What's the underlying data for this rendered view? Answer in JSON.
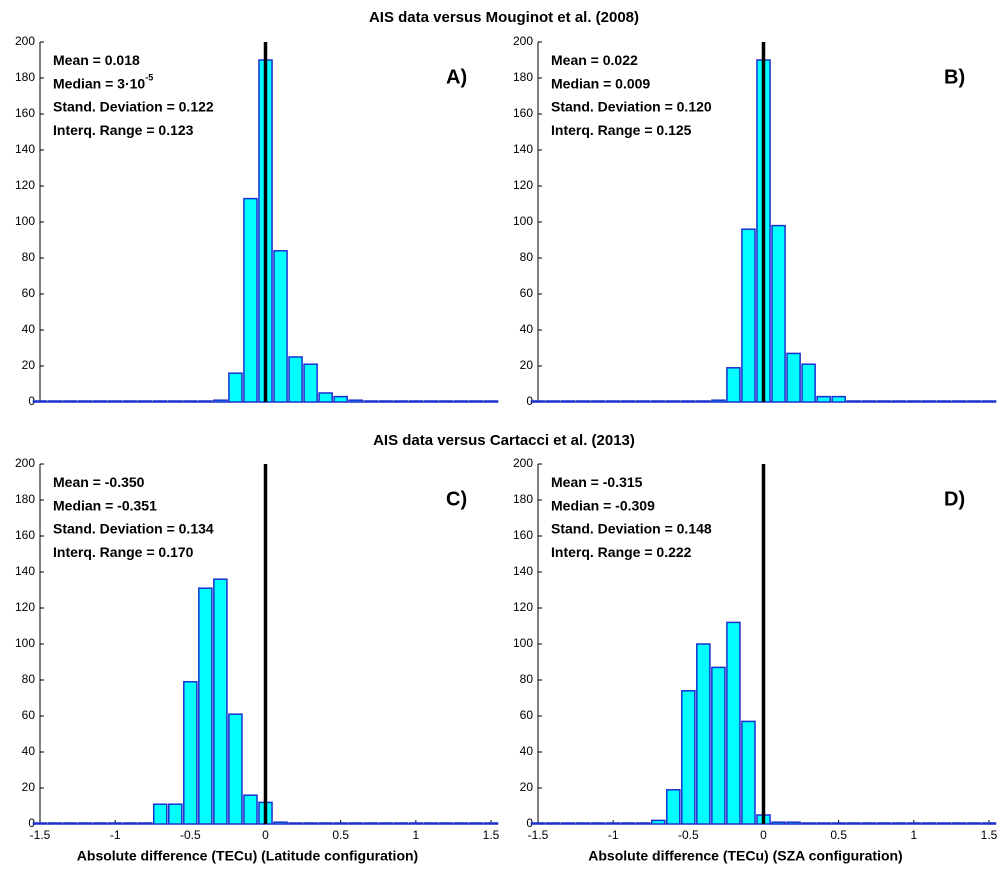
{
  "chart_data": [
    {
      "type": "bar",
      "title": "AIS data versus Mouginot et al. (2008)",
      "panel_label": "A)",
      "annotations": [
        {
          "text": "Mean =  0.018"
        },
        {
          "text": "Median = 3·10",
          "superscript": "-5"
        },
        {
          "text": "Stand. Deviation = 0.122"
        },
        {
          "text": "Interq. Range = 0.123"
        }
      ],
      "x": [
        -1.5,
        -1.4,
        -1.3,
        -1.2,
        -1.1,
        -1,
        -0.9,
        -0.8,
        -0.7,
        -0.6,
        -0.5,
        -0.4,
        -0.3,
        -0.2,
        -0.1,
        0,
        0.1,
        0.2,
        0.3,
        0.4,
        0.5,
        0.6,
        0.7,
        0.8,
        0.9,
        1,
        1.1,
        1.2,
        1.3,
        1.4,
        1.5
      ],
      "values": [
        0,
        0,
        0,
        0,
        0,
        0,
        0,
        0,
        0,
        0,
        0,
        0,
        1,
        16,
        113,
        190,
        84,
        25,
        21,
        5,
        3,
        1,
        0,
        0,
        0,
        0,
        0,
        0,
        0,
        0,
        0
      ],
      "color": "#00ffff",
      "edge_color": "#1a2fd0",
      "reference_line_x": 0,
      "reference_line_color": "#000000",
      "xlim": [
        -1.5,
        1.5
      ],
      "ylim": [
        0,
        200
      ],
      "yticks": [
        0,
        20,
        40,
        60,
        80,
        100,
        120,
        140,
        160,
        180,
        200
      ]
    },
    {
      "type": "bar",
      "panel_label": "B)",
      "annotations": [
        {
          "text": "Mean =  0.022"
        },
        {
          "text": "Median = 0.009"
        },
        {
          "text": "Stand. Deviation = 0.120"
        },
        {
          "text": "Interq. Range = 0.125"
        }
      ],
      "x": [
        -1.5,
        -1.4,
        -1.3,
        -1.2,
        -1.1,
        -1,
        -0.9,
        -0.8,
        -0.7,
        -0.6,
        -0.5,
        -0.4,
        -0.3,
        -0.2,
        -0.1,
        0,
        0.1,
        0.2,
        0.3,
        0.4,
        0.5,
        0.6,
        0.7,
        0.8,
        0.9,
        1,
        1.1,
        1.2,
        1.3,
        1.4,
        1.5
      ],
      "values": [
        0,
        0,
        0,
        0,
        0,
        0,
        0,
        0,
        0,
        0,
        0,
        0,
        1,
        19,
        96,
        190,
        98,
        27,
        21,
        3,
        3,
        0,
        0,
        0,
        0,
        0,
        0,
        0,
        0,
        0,
        0
      ],
      "color": "#00ffff",
      "edge_color": "#1a2fd0",
      "reference_line_x": 0,
      "reference_line_color": "#000000",
      "xlim": [
        -1.5,
        1.5
      ],
      "ylim": [
        0,
        200
      ],
      "yticks": [
        0,
        20,
        40,
        60,
        80,
        100,
        120,
        140,
        160,
        180,
        200
      ]
    },
    {
      "type": "bar",
      "title": "AIS data versus Cartacci et al. (2013)",
      "panel_label": "C)",
      "annotations": [
        {
          "text": "Mean =  -0.350"
        },
        {
          "text": "Median = -0.351"
        },
        {
          "text": "Stand. Deviation = 0.134"
        },
        {
          "text": "Interq. Range = 0.170"
        }
      ],
      "x": [
        -1.5,
        -1.4,
        -1.3,
        -1.2,
        -1.1,
        -1,
        -0.9,
        -0.8,
        -0.7,
        -0.6,
        -0.5,
        -0.4,
        -0.3,
        -0.2,
        -0.1,
        0,
        0.1,
        0.2,
        0.3,
        0.4,
        0.5,
        0.6,
        0.7,
        0.8,
        0.9,
        1,
        1.1,
        1.2,
        1.3,
        1.4,
        1.5
      ],
      "values": [
        0,
        0,
        0,
        0,
        0,
        0,
        0,
        0,
        11,
        11,
        79,
        131,
        136,
        61,
        16,
        12,
        1,
        0,
        0,
        0,
        0,
        0,
        0,
        0,
        0,
        0,
        0,
        0,
        0,
        0,
        0
      ],
      "color": "#00ffff",
      "edge_color": "#1a2fd0",
      "reference_line_x": 0,
      "reference_line_color": "#000000",
      "xlabel": "Absolute difference (TECu)  (Latitude configuration)",
      "xlim": [
        -1.5,
        1.5
      ],
      "xticks": [
        -1.5,
        -1,
        -0.5,
        0,
        0.5,
        1,
        1.5
      ],
      "ylim": [
        0,
        200
      ],
      "yticks": [
        0,
        20,
        40,
        60,
        80,
        100,
        120,
        140,
        160,
        180,
        200
      ]
    },
    {
      "type": "bar",
      "panel_label": "D)",
      "annotations": [
        {
          "text": "Mean =  -0.315"
        },
        {
          "text": "Median = -0.309"
        },
        {
          "text": "Stand. Deviation = 0.148"
        },
        {
          "text": "Interq. Range = 0.222"
        }
      ],
      "x": [
        -1.5,
        -1.4,
        -1.3,
        -1.2,
        -1.1,
        -1,
        -0.9,
        -0.8,
        -0.7,
        -0.6,
        -0.5,
        -0.4,
        -0.3,
        -0.2,
        -0.1,
        0,
        0.1,
        0.2,
        0.3,
        0.4,
        0.5,
        0.6,
        0.7,
        0.8,
        0.9,
        1,
        1.1,
        1.2,
        1.3,
        1.4,
        1.5
      ],
      "values": [
        0,
        0,
        0,
        0,
        0,
        0,
        0,
        0,
        2,
        19,
        74,
        100,
        87,
        112,
        57,
        5,
        1,
        1,
        0,
        0,
        0,
        0,
        0,
        0,
        0,
        0,
        0,
        0,
        0,
        0,
        0
      ],
      "color": "#00ffff",
      "edge_color": "#1a2fd0",
      "reference_line_x": 0,
      "reference_line_color": "#000000",
      "xlabel": "Absolute difference (TECu)  (SZA configuration)",
      "xlim": [
        -1.5,
        1.5
      ],
      "xticks": [
        -1.5,
        -1,
        -0.5,
        0,
        0.5,
        1,
        1.5
      ],
      "ylim": [
        0,
        200
      ],
      "yticks": [
        0,
        20,
        40,
        60,
        80,
        100,
        120,
        140,
        160,
        180,
        200
      ]
    }
  ]
}
